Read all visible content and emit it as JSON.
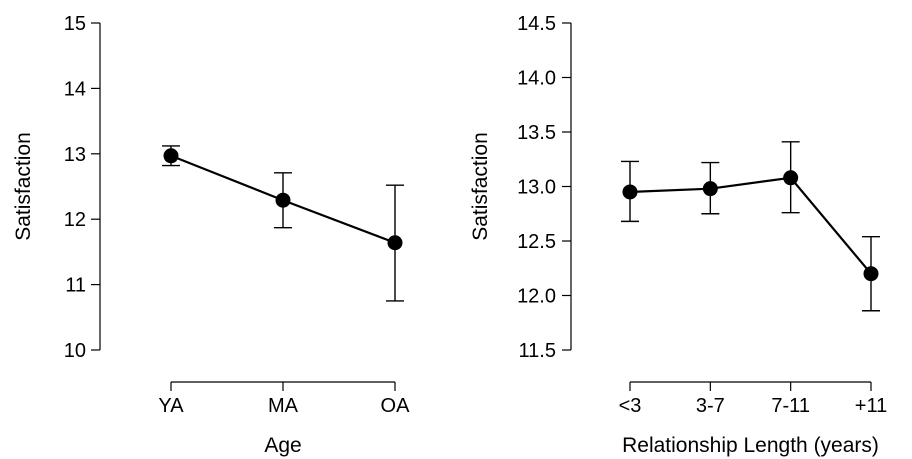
{
  "chart_data": [
    {
      "type": "line",
      "xlabel": "Age",
      "ylabel": "Satisfaction",
      "categories": [
        "YA",
        "MA",
        "OA"
      ],
      "ylim": [
        10,
        15
      ],
      "yticks": [
        "10",
        "11",
        "12",
        "13",
        "14",
        "15"
      ],
      "series": [
        {
          "values": [
            12.97,
            12.29,
            11.64
          ],
          "error_low": [
            12.82,
            11.87,
            10.75
          ],
          "error_high": [
            13.12,
            12.71,
            12.52
          ]
        }
      ],
      "grid": false
    },
    {
      "type": "line",
      "xlabel": "Relationship Length (years)",
      "ylabel": "Satisfaction",
      "categories": [
        "<3",
        "3-7",
        "7-11",
        "+11"
      ],
      "ylim": [
        11.5,
        14.5
      ],
      "yticks": [
        "11.5",
        "12.0",
        "12.5",
        "13.0",
        "13.5",
        "14.0",
        "14.5"
      ],
      "series": [
        {
          "values": [
            12.95,
            12.98,
            13.08,
            12.2
          ],
          "error_low": [
            12.68,
            12.75,
            12.76,
            11.86
          ],
          "error_high": [
            13.23,
            13.22,
            13.41,
            12.54
          ]
        }
      ],
      "grid": false
    }
  ]
}
